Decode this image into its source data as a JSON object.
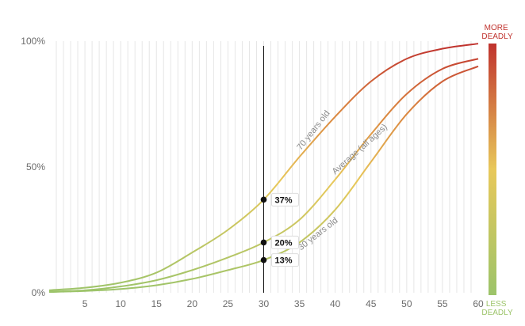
{
  "colors": {
    "more_deadly": "#c0332e",
    "less_deadly": "#9cc46a",
    "mid": "#e8c85a",
    "grid": "#e6e6e6",
    "axis_text": "#6b6b6b",
    "marker": "#111111"
  },
  "chart_data": {
    "type": "line",
    "title": "",
    "xlabel": "",
    "ylabel": "",
    "xlim": [
      0,
      60
    ],
    "ylim": [
      0,
      100
    ],
    "x_ticks": [
      "5",
      "10",
      "15",
      "20",
      "25",
      "30",
      "35",
      "40",
      "45",
      "50",
      "55",
      "60"
    ],
    "y_ticks": [
      "0%",
      "50%",
      "100%"
    ],
    "grid": "vertical minor lines every 1 unit",
    "color_scale": {
      "top_label": [
        "MORE",
        "DEADLY"
      ],
      "bottom_label": [
        "LESS",
        "DEADLY"
      ]
    },
    "series": [
      {
        "name": "70 years old",
        "x": [
          0,
          5,
          10,
          15,
          20,
          25,
          30,
          35,
          40,
          45,
          50,
          55,
          60
        ],
        "values": [
          1,
          2,
          4,
          8,
          16,
          25,
          37,
          54,
          70,
          84,
          93,
          97,
          99
        ]
      },
      {
        "name": "Average (all ages)",
        "x": [
          0,
          5,
          10,
          15,
          20,
          25,
          30,
          35,
          40,
          45,
          50,
          55,
          60
        ],
        "values": [
          0.5,
          1,
          2.5,
          5,
          9,
          14,
          20,
          29,
          45,
          63,
          79,
          89,
          93
        ]
      },
      {
        "name": "30 years old",
        "x": [
          0,
          5,
          10,
          15,
          20,
          25,
          30,
          35,
          40,
          45,
          50,
          55,
          60
        ],
        "values": [
          0.3,
          0.7,
          1.5,
          3,
          5.5,
          9,
          13,
          20,
          33,
          52,
          71,
          84,
          90
        ]
      }
    ],
    "marker": {
      "x": 30,
      "points": [
        {
          "series": "70 years old",
          "value": 37,
          "label": "37%"
        },
        {
          "series": "Average (all ages)",
          "value": 20,
          "label": "20%"
        },
        {
          "series": "30 years old",
          "value": 13,
          "label": "13%"
        }
      ]
    }
  }
}
